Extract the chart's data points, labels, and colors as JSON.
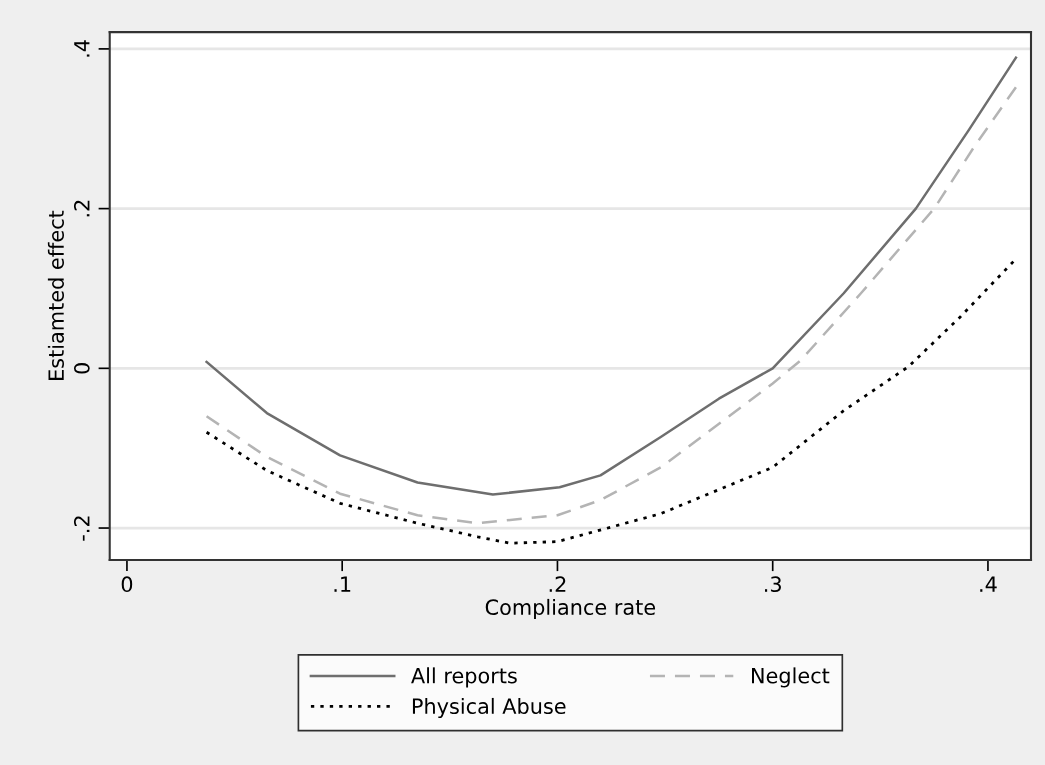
{
  "chart_data": {
    "type": "line",
    "xlabel": "Compliance rate",
    "ylabel": "Estiamted effect",
    "xlim": [
      -0.008,
      0.42
    ],
    "ylim": [
      -0.24,
      0.421
    ],
    "xticks": [
      {
        "value": 0,
        "label": "0"
      },
      {
        "value": 0.1,
        "label": ".1"
      },
      {
        "value": 0.2,
        "label": ".2"
      },
      {
        "value": 0.3,
        "label": ".3"
      },
      {
        "value": 0.4,
        "label": ".4"
      }
    ],
    "yticks": [
      {
        "value": -0.2,
        "label": "-.2"
      },
      {
        "value": 0,
        "label": "0"
      },
      {
        "value": 0.2,
        "label": ".2"
      },
      {
        "value": 0.4,
        "label": ".4"
      }
    ],
    "grid": "y",
    "legend": "bottom",
    "marker": "none",
    "series": [
      {
        "name": "All reports",
        "color": "#6e6e6e",
        "line_style": "solid",
        "x": [
          0.037,
          0.065,
          0.099,
          0.135,
          0.17,
          0.201,
          0.22,
          0.248,
          0.275,
          0.3,
          0.333,
          0.3665,
          0.391,
          0.413
        ],
        "values": [
          0.008,
          -0.056,
          -0.109,
          -0.143,
          -0.158,
          -0.149,
          -0.134,
          -0.086,
          -0.038,
          0.0,
          0.094,
          0.2,
          0.298,
          0.389
        ]
      },
      {
        "name": "Neglect",
        "color": "#b4b4b4",
        "line_style": "dashed",
        "x": [
          0.037,
          0.065,
          0.099,
          0.135,
          0.163,
          0.2,
          0.22,
          0.248,
          0.3,
          0.313,
          0.341,
          0.375,
          0.3935,
          0.413
        ],
        "values": [
          -0.06,
          -0.111,
          -0.157,
          -0.184,
          -0.194,
          -0.184,
          -0.165,
          -0.124,
          -0.019,
          0.01,
          0.094,
          0.2,
          0.277,
          0.352
        ]
      },
      {
        "name": "Physical Abuse",
        "color": "#000000",
        "line_style": "dotted",
        "x": [
          0.037,
          0.065,
          0.099,
          0.135,
          0.163,
          0.178,
          0.2,
          0.248,
          0.3,
          0.333,
          0.363,
          0.387,
          0.413
        ],
        "values": [
          -0.08,
          -0.128,
          -0.169,
          -0.194,
          -0.211,
          -0.219,
          -0.217,
          -0.182,
          -0.124,
          -0.053,
          0.002,
          0.064,
          0.137
        ]
      }
    ]
  }
}
